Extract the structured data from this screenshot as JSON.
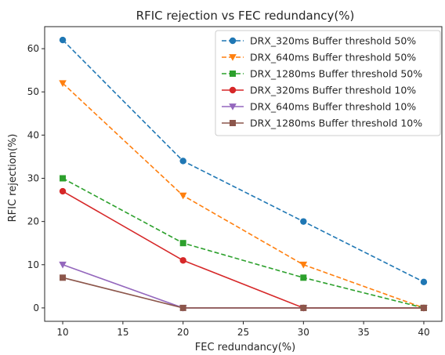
{
  "chart_data": {
    "type": "line",
    "title": "RFIC rejection vs FEC redundancy(%)",
    "xlabel": "FEC redundancy(%)",
    "ylabel": "RFIC rejection(%)",
    "x": [
      10,
      20,
      30,
      40
    ],
    "xlim": [
      8.5,
      41.5
    ],
    "ylim": [
      -3.1,
      65.1
    ],
    "xticks": [
      10,
      15,
      20,
      25,
      30,
      35,
      40
    ],
    "yticks": [
      0,
      10,
      20,
      30,
      40,
      50,
      60
    ],
    "grid": false,
    "legend_position": "top-right",
    "series": [
      {
        "name": "DRX_320ms Buffer threshold 50%",
        "values": [
          62,
          34,
          20,
          6
        ],
        "color": "#1f77b4",
        "linestyle": "dashed",
        "marker": "circle"
      },
      {
        "name": "DRX_640ms Buffer threshold 50%",
        "values": [
          52,
          26,
          10,
          0
        ],
        "color": "#ff7f0e",
        "linestyle": "dashed",
        "marker": "triangle-down"
      },
      {
        "name": "DRX_1280ms Buffer threshold 50%",
        "values": [
          30,
          15,
          7,
          0
        ],
        "color": "#2ca02c",
        "linestyle": "dashed",
        "marker": "square"
      },
      {
        "name": "DRX_320ms Buffer threshold 10%",
        "values": [
          27,
          11,
          0,
          0
        ],
        "color": "#d62728",
        "linestyle": "solid",
        "marker": "circle"
      },
      {
        "name": "DRX_640ms Buffer threshold 10%",
        "values": [
          10,
          0,
          0,
          0
        ],
        "color": "#9467bd",
        "linestyle": "solid",
        "marker": "triangle-down"
      },
      {
        "name": "DRX_1280ms Buffer threshold 10%",
        "values": [
          7,
          0,
          0,
          0
        ],
        "color": "#8c564b",
        "linestyle": "solid",
        "marker": "square"
      }
    ]
  }
}
